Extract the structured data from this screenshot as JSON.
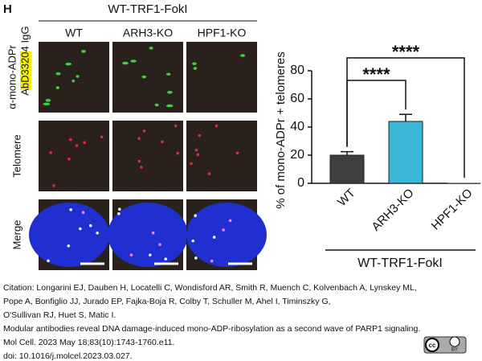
{
  "panel_label": "H",
  "microscopy": {
    "title": "WT-TRF1-FokI",
    "columns": [
      "WT",
      "ARH3-KO",
      "HPF1-KO"
    ],
    "row_antibody": {
      "line1": "α-mono-ADPr",
      "highlight": "AbD33204",
      "rest": "IgG"
    },
    "row_telomere": "Telomere",
    "row_merge": "Merge"
  },
  "chart_data": {
    "type": "bar",
    "categories": [
      "WT",
      "ARH3-KO",
      "HPF1-KO"
    ],
    "values": [
      20,
      44,
      0.5
    ],
    "errors": [
      2.5,
      5,
      null
    ],
    "colors": [
      "#3f3f3f",
      "#3ab7d6",
      "#e08a4a"
    ],
    "ylabel": "% of mono-ADPr + telomeres",
    "xlabel": "WT-TRF1-FokI",
    "ylim": [
      0,
      80
    ],
    "yticks": [
      0,
      20,
      40,
      60,
      80
    ],
    "significance": [
      {
        "from": 0,
        "to": 1,
        "label": "****"
      },
      {
        "from": 0,
        "to": 2,
        "label": "****"
      }
    ]
  },
  "citation": {
    "lines": [
      "Citation: Longarini EJ, Dauben H, Locatelli C, Wondisford AR, Smith R, Muench C, Kolvenbach A, Lynskey ML,",
      "Pope A, Bonfiglio JJ, Jurado EP, Fajka-Boja R, Colby T, Schuller M, Ahel I, Timinszky G,",
      "O'Sullivan RJ, Huet S, Matic I.",
      "Modular antibodies reveal DNA damage-induced mono-ADP-ribosylation as a second wave of PARP1 signaling.",
      "Mol Cell. 2023 May 18;83(10):1743-1760.e11.",
      "doi: 10.1016/j.molcel.2023.03.027."
    ],
    "license": "BY"
  }
}
